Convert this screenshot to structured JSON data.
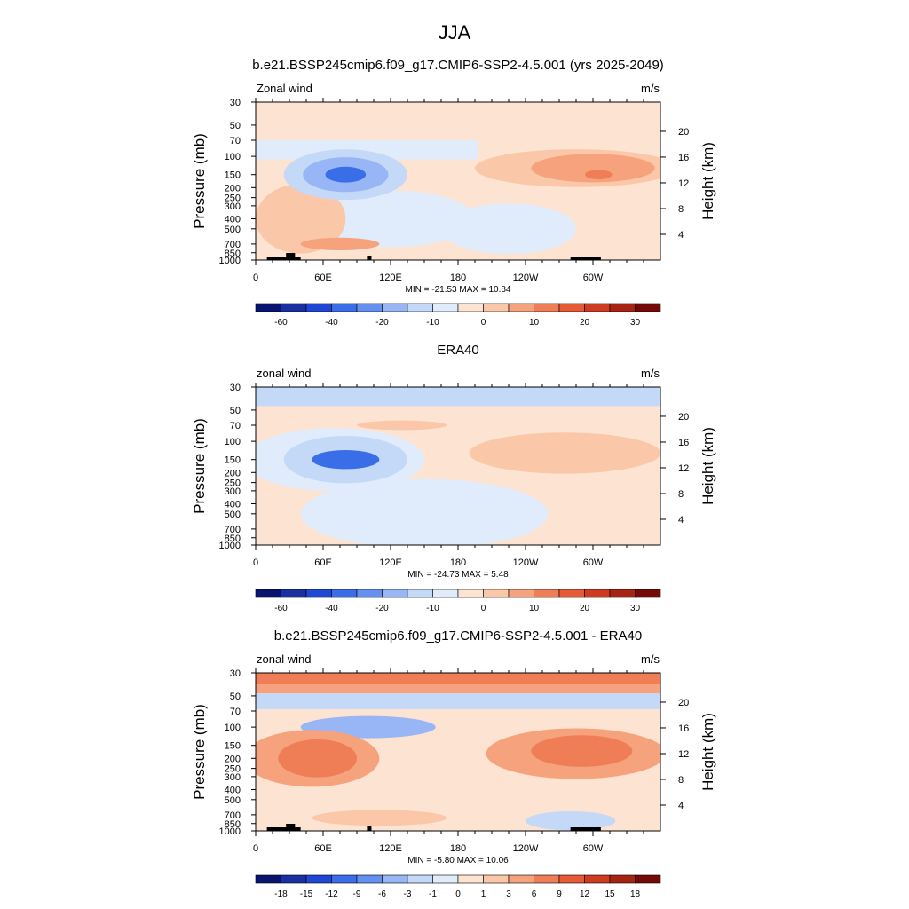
{
  "figure": {
    "title": "JJA"
  },
  "colorbar_colors": [
    "#0a1470",
    "#1a2fa0",
    "#1e47d6",
    "#3a6ee8",
    "#6491ef",
    "#98b5f5",
    "#c4d8f8",
    "#e0ecfb",
    "#fde3d2",
    "#fbc7a9",
    "#f5a27d",
    "#ef7d56",
    "#e65a35",
    "#cf3b20",
    "#a82412",
    "#730a08"
  ],
  "chart_data": [
    {
      "type": "heatmap",
      "title": "b.e21.BSSP245cmip6.f09_g17.CMIP6-SSP2-4.5.001 (yrs 2025-2049)",
      "variable": "Zonal wind",
      "units": "m/s",
      "ylabel": "Pressure (mb)",
      "ylabel_right": "Height (km)",
      "x_ticks": [
        "0",
        "60E",
        "120E",
        "180",
        "120W",
        "60W"
      ],
      "y_ticks": [
        "30",
        "50",
        "70",
        "100",
        "150",
        "200",
        "250",
        "300",
        "400",
        "500",
        "700",
        "850",
        "1000"
      ],
      "y_ticks_right": [
        "20",
        "16",
        "12",
        "8",
        "4"
      ],
      "min_max_text": "MIN = -21.53  MAX =  10.84",
      "min": -21.53,
      "max": 10.84,
      "colorbar_ticks": [
        "-60",
        "-40",
        "-20",
        "-10",
        "0",
        "10",
        "20",
        "30"
      ]
    },
    {
      "type": "heatmap",
      "title": "ERA40",
      "variable": "zonal wind",
      "units": "m/s",
      "ylabel": "Pressure (mb)",
      "ylabel_right": "Height (km)",
      "x_ticks": [
        "0",
        "60E",
        "120E",
        "180",
        "120W",
        "60W"
      ],
      "y_ticks": [
        "30",
        "50",
        "70",
        "100",
        "150",
        "200",
        "250",
        "300",
        "400",
        "500",
        "700",
        "850",
        "1000"
      ],
      "y_ticks_right": [
        "20",
        "16",
        "12",
        "8",
        "4"
      ],
      "min_max_text": "MIN = -24.73  MAX =   5.48",
      "min": -24.73,
      "max": 5.48,
      "colorbar_ticks": [
        "-60",
        "-40",
        "-20",
        "-10",
        "0",
        "10",
        "20",
        "30"
      ]
    },
    {
      "type": "heatmap",
      "title": "b.e21.BSSP245cmip6.f09_g17.CMIP6-SSP2-4.5.001 - ERA40",
      "variable": "zonal wind",
      "units": "m/s",
      "ylabel": "Pressure (mb)",
      "ylabel_right": "Height (km)",
      "x_ticks": [
        "0",
        "60E",
        "120E",
        "180",
        "120W",
        "60W"
      ],
      "y_ticks": [
        "30",
        "50",
        "70",
        "100",
        "150",
        "200",
        "250",
        "300",
        "400",
        "500",
        "700",
        "850",
        "1000"
      ],
      "y_ticks_right": [
        "20",
        "16",
        "12",
        "8",
        "4"
      ],
      "min_max_text": "MIN =  -5.80  MAX =  10.06",
      "min": -5.8,
      "max": 10.06,
      "colorbar_ticks": [
        "-18",
        "-15",
        "-12",
        "-9",
        "-6",
        "-3",
        "-1",
        "0",
        "1",
        "3",
        "6",
        "9",
        "12",
        "15",
        "18"
      ]
    }
  ]
}
